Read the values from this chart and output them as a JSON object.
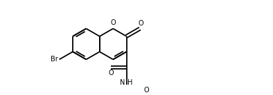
{
  "figsize": [
    3.94,
    1.38
  ],
  "dpi": 100,
  "bg": "#ffffff",
  "lc": "#000000",
  "lw": 1.3,
  "fs": 7.0,
  "xlim": [
    0,
    10.5
  ],
  "ylim": [
    0,
    3.7
  ],
  "u": 0.78
}
